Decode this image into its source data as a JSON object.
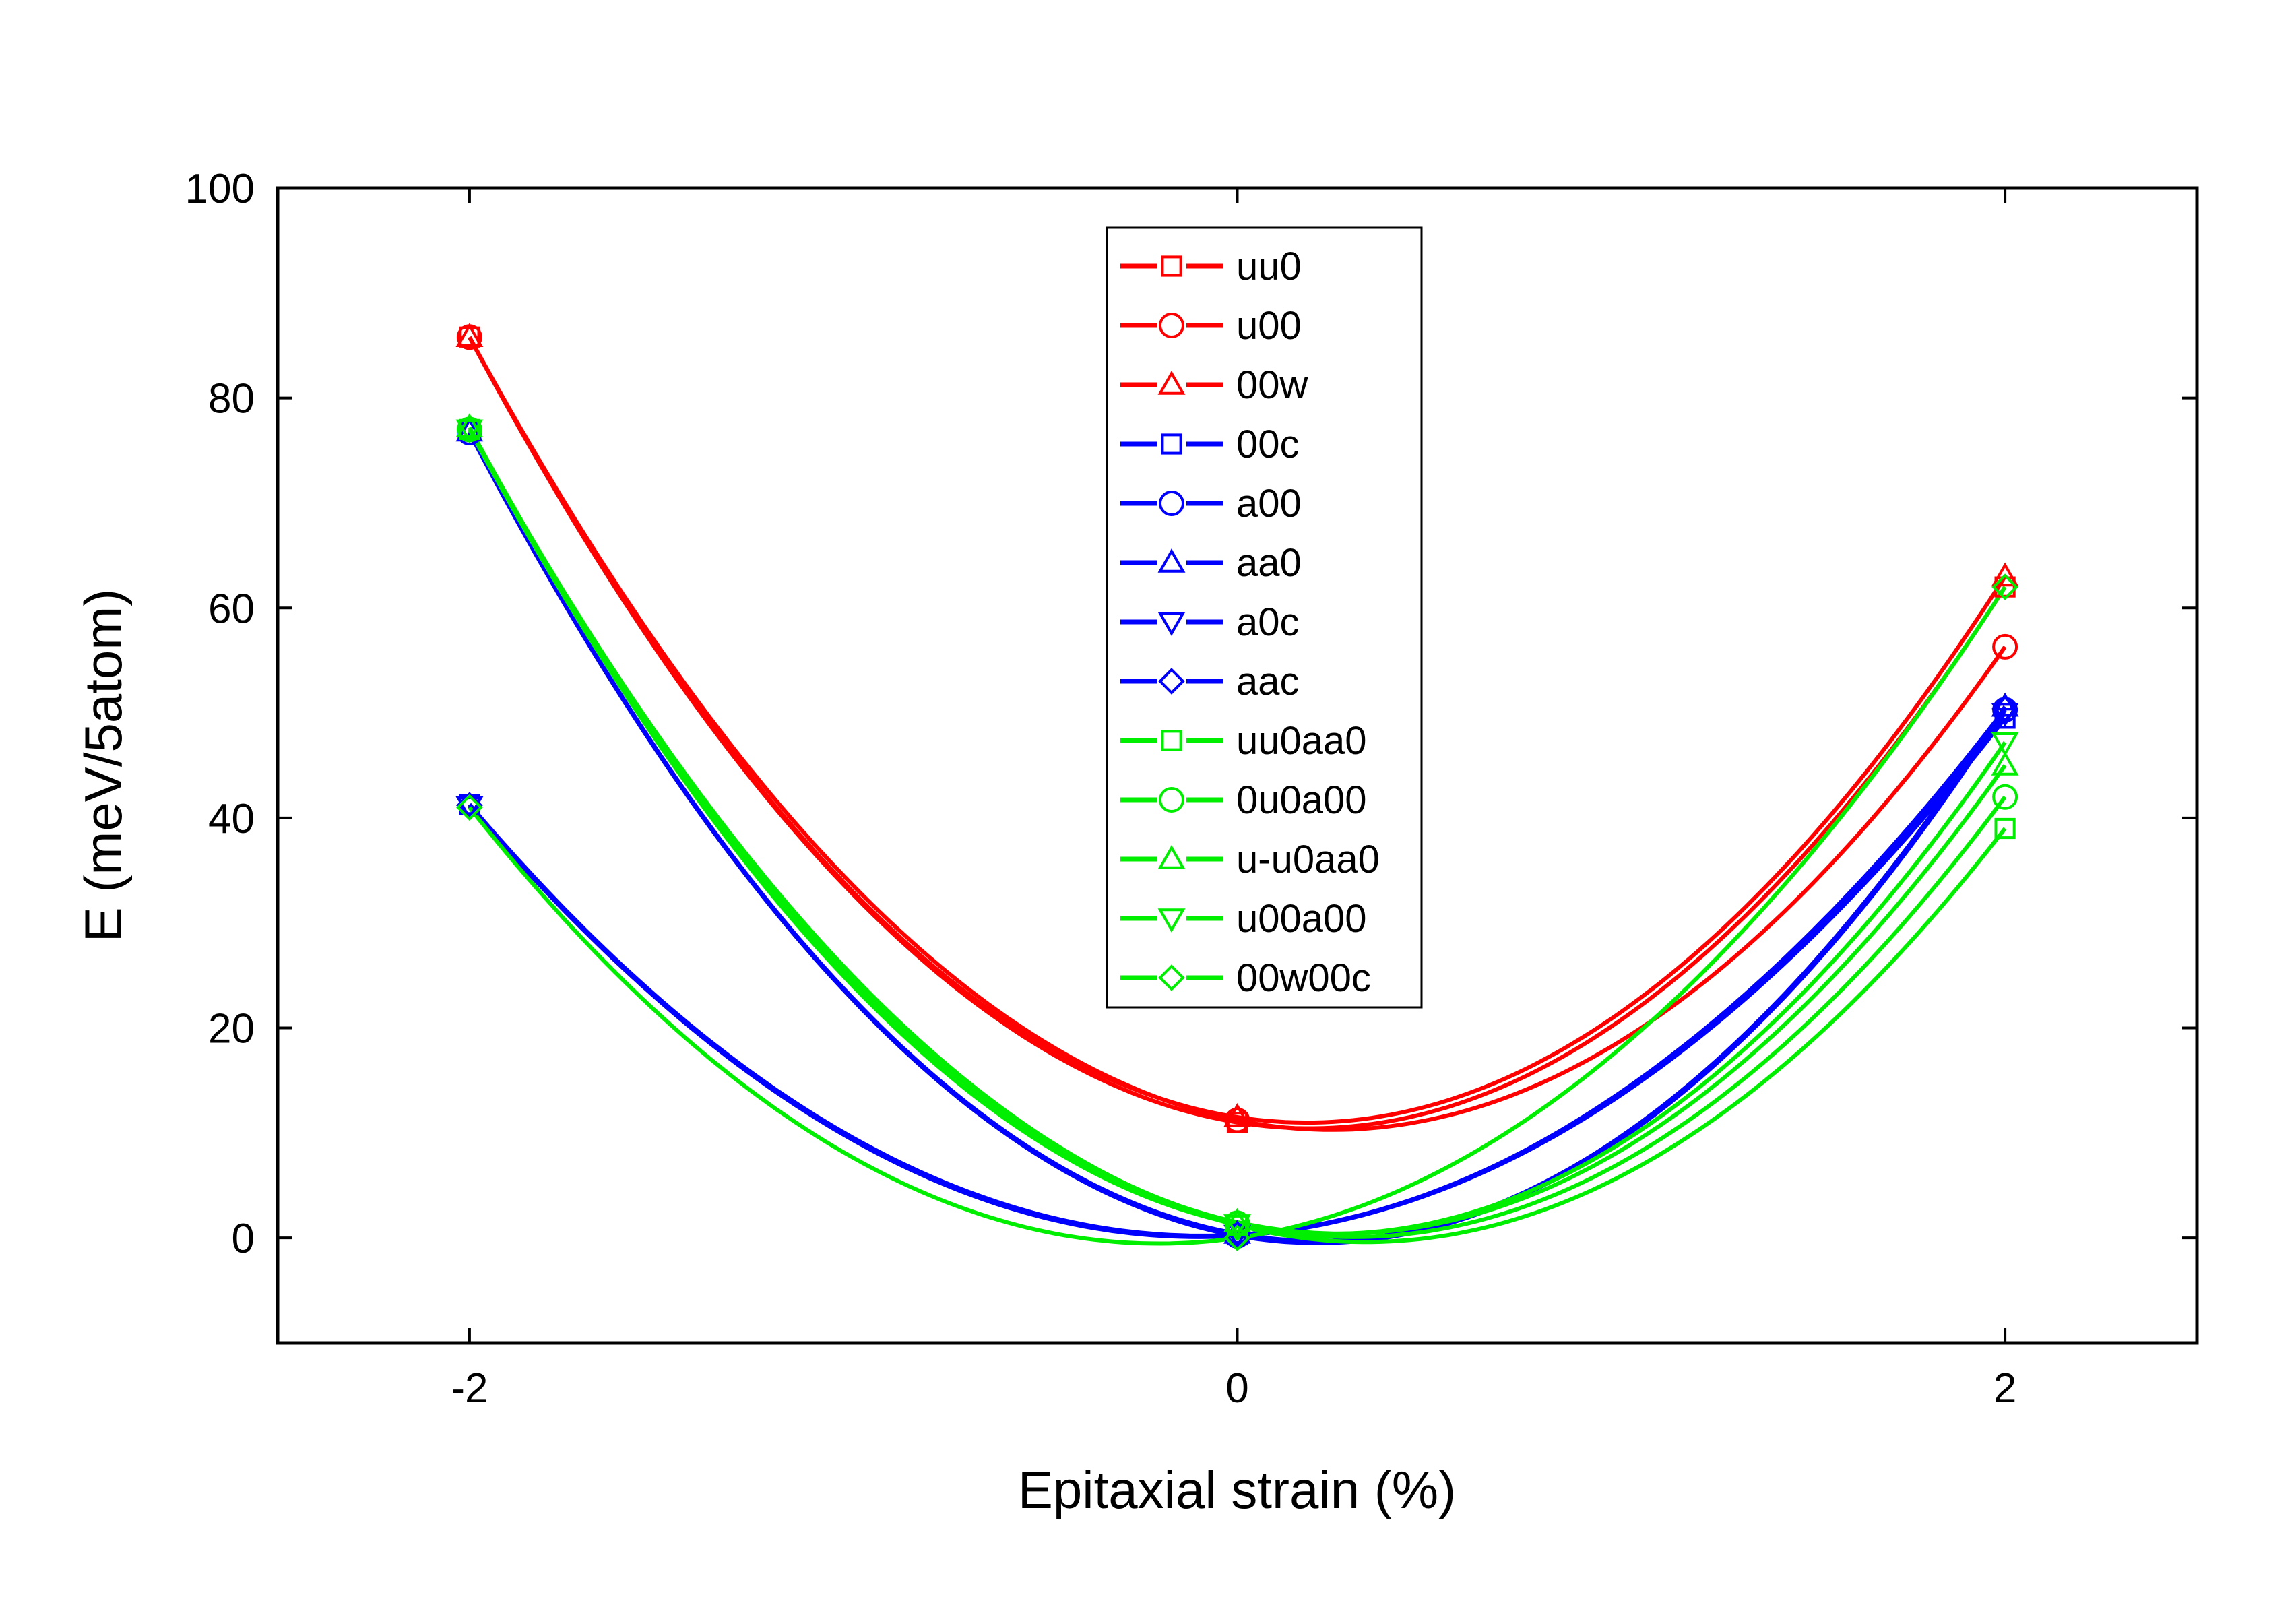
{
  "chart_data": {
    "type": "line",
    "title": "",
    "xlabel": "Epitaxial strain (%)",
    "ylabel": "E (meV/5atom)",
    "xlim": [
      -2.5,
      2.5
    ],
    "ylim": [
      -10,
      100
    ],
    "x": [
      -2,
      0,
      2
    ],
    "xticks": [
      -2,
      0,
      2
    ],
    "xtick_labels": [
      "-2",
      "0",
      "2"
    ],
    "yticks": [
      0,
      20,
      40,
      60,
      80,
      100
    ],
    "ytick_labels": [
      "0",
      "20",
      "40",
      "60",
      "80",
      "100"
    ],
    "grid": false,
    "legend_position": "top-center",
    "series": [
      {
        "name": "uu0",
        "color": "#ff0000",
        "marker": "square",
        "values": [
          85.8,
          11.0,
          62.0
        ]
      },
      {
        "name": "u00",
        "color": "#ff0000",
        "marker": "circle",
        "values": [
          85.8,
          11.2,
          56.3
        ]
      },
      {
        "name": "00w",
        "color": "#ff0000",
        "marker": "triangle-up",
        "values": [
          85.8,
          11.5,
          63.0
        ]
      },
      {
        "name": "00c",
        "color": "#0000ff",
        "marker": "square",
        "values": [
          41.3,
          0.3,
          49.5
        ]
      },
      {
        "name": "a00",
        "color": "#0000ff",
        "marker": "circle",
        "values": [
          76.7,
          0.2,
          50.3
        ]
      },
      {
        "name": "aa0",
        "color": "#0000ff",
        "marker": "triangle-up",
        "values": [
          76.8,
          0.4,
          50.6
        ]
      },
      {
        "name": "a0c",
        "color": "#0000ff",
        "marker": "triangle-down",
        "values": [
          41.1,
          0.3,
          50.0
        ]
      },
      {
        "name": "aac",
        "color": "#0000ff",
        "marker": "diamond",
        "values": [
          41.2,
          0.2,
          50.4
        ]
      },
      {
        "name": "uu0aa0",
        "color": "#00ee00",
        "marker": "square",
        "values": [
          77.0,
          1.2,
          39.0
        ]
      },
      {
        "name": "0u0a00",
        "color": "#00ee00",
        "marker": "circle",
        "values": [
          77.0,
          1.4,
          42.0
        ]
      },
      {
        "name": "u-u0aa0",
        "color": "#00ee00",
        "marker": "triangle-up",
        "values": [
          77.2,
          1.5,
          45.0
        ]
      },
      {
        "name": "u00a00",
        "color": "#00ee00",
        "marker": "triangle-down",
        "values": [
          77.0,
          1.3,
          47.2
        ]
      },
      {
        "name": "00w00c",
        "color": "#00ee00",
        "marker": "diamond",
        "values": [
          41.0,
          0.0,
          62.0
        ]
      }
    ]
  }
}
